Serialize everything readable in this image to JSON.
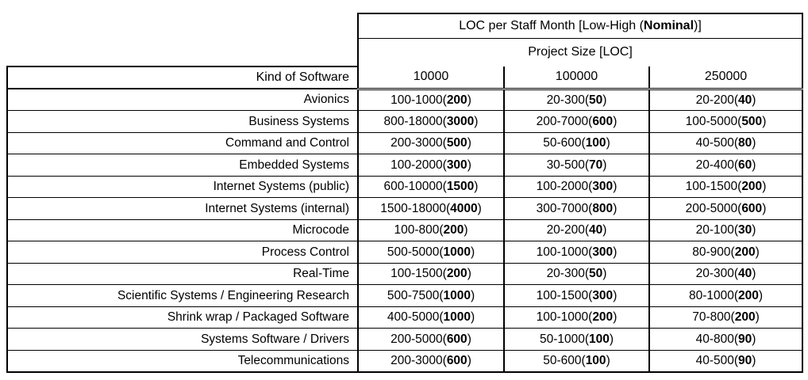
{
  "table": {
    "title": {
      "prefix": "LOC per Staff Month [Low-High (",
      "bold": "Nominal",
      "suffix": ")]"
    },
    "subtitle": "Project Size [LOC]",
    "row_header_label": "Kind of Software",
    "size_columns": [
      "10000",
      "100000",
      "250000"
    ],
    "rows": [
      {
        "kind": "Avionics",
        "cells": [
          {
            "range": "100-1000",
            "nominal": "200"
          },
          {
            "range": "20-300",
            "nominal": "50"
          },
          {
            "range": "20-200",
            "nominal": "40"
          }
        ]
      },
      {
        "kind": "Business Systems",
        "cells": [
          {
            "range": "800-18000",
            "nominal": "3000"
          },
          {
            "range": "200-7000",
            "nominal": "600"
          },
          {
            "range": "100-5000",
            "nominal": "500"
          }
        ]
      },
      {
        "kind": "Command and Control",
        "cells": [
          {
            "range": "200-3000",
            "nominal": "500"
          },
          {
            "range": "50-600",
            "nominal": "100"
          },
          {
            "range": "40-500",
            "nominal": "80"
          }
        ]
      },
      {
        "kind": "Embedded Systems",
        "cells": [
          {
            "range": "100-2000",
            "nominal": "300"
          },
          {
            "range": "30-500",
            "nominal": "70"
          },
          {
            "range": "20-400",
            "nominal": "60"
          }
        ]
      },
      {
        "kind": "Internet Systems (public)",
        "cells": [
          {
            "range": "600-10000",
            "nominal": "1500"
          },
          {
            "range": "100-2000",
            "nominal": "300"
          },
          {
            "range": "100-1500",
            "nominal": "200"
          }
        ]
      },
      {
        "kind": "Internet Systems (internal)",
        "cells": [
          {
            "range": "1500-18000",
            "nominal": "4000"
          },
          {
            "range": "300-7000",
            "nominal": "800"
          },
          {
            "range": "200-5000",
            "nominal": "600"
          }
        ]
      },
      {
        "kind": "Microcode",
        "cells": [
          {
            "range": "100-800",
            "nominal": "200"
          },
          {
            "range": "20-200",
            "nominal": "40"
          },
          {
            "range": "20-100",
            "nominal": "30"
          }
        ]
      },
      {
        "kind": "Process Control",
        "cells": [
          {
            "range": "500-5000",
            "nominal": "1000"
          },
          {
            "range": "100-1000",
            "nominal": "300"
          },
          {
            "range": "80-900",
            "nominal": "200"
          }
        ]
      },
      {
        "kind": "Real-Time",
        "cells": [
          {
            "range": "100-1500",
            "nominal": "200"
          },
          {
            "range": "20-300",
            "nominal": "50"
          },
          {
            "range": "20-300",
            "nominal": "40"
          }
        ]
      },
      {
        "kind": "Scientific Systems / Engineering Research",
        "cells": [
          {
            "range": "500-7500",
            "nominal": "1000"
          },
          {
            "range": "100-1500",
            "nominal": "300"
          },
          {
            "range": "80-1000",
            "nominal": "200"
          }
        ]
      },
      {
        "kind": "Shrink wrap / Packaged Software",
        "cells": [
          {
            "range": "400-5000",
            "nominal": "1000"
          },
          {
            "range": "100-1000",
            "nominal": "200"
          },
          {
            "range": "70-800",
            "nominal": "200"
          }
        ]
      },
      {
        "kind": "Systems Software / Drivers",
        "cells": [
          {
            "range": "200-5000",
            "nominal": "600"
          },
          {
            "range": "50-1000",
            "nominal": "100"
          },
          {
            "range": "40-800",
            "nominal": "90"
          }
        ]
      },
      {
        "kind": "Telecommunications",
        "cells": [
          {
            "range": "200-3000",
            "nominal": "600"
          },
          {
            "range": "50-600",
            "nominal": "100"
          },
          {
            "range": "40-500",
            "nominal": "90"
          }
        ]
      }
    ],
    "colors": {
      "border": "#000000",
      "text": "#000000",
      "background": "#ffffff"
    }
  }
}
